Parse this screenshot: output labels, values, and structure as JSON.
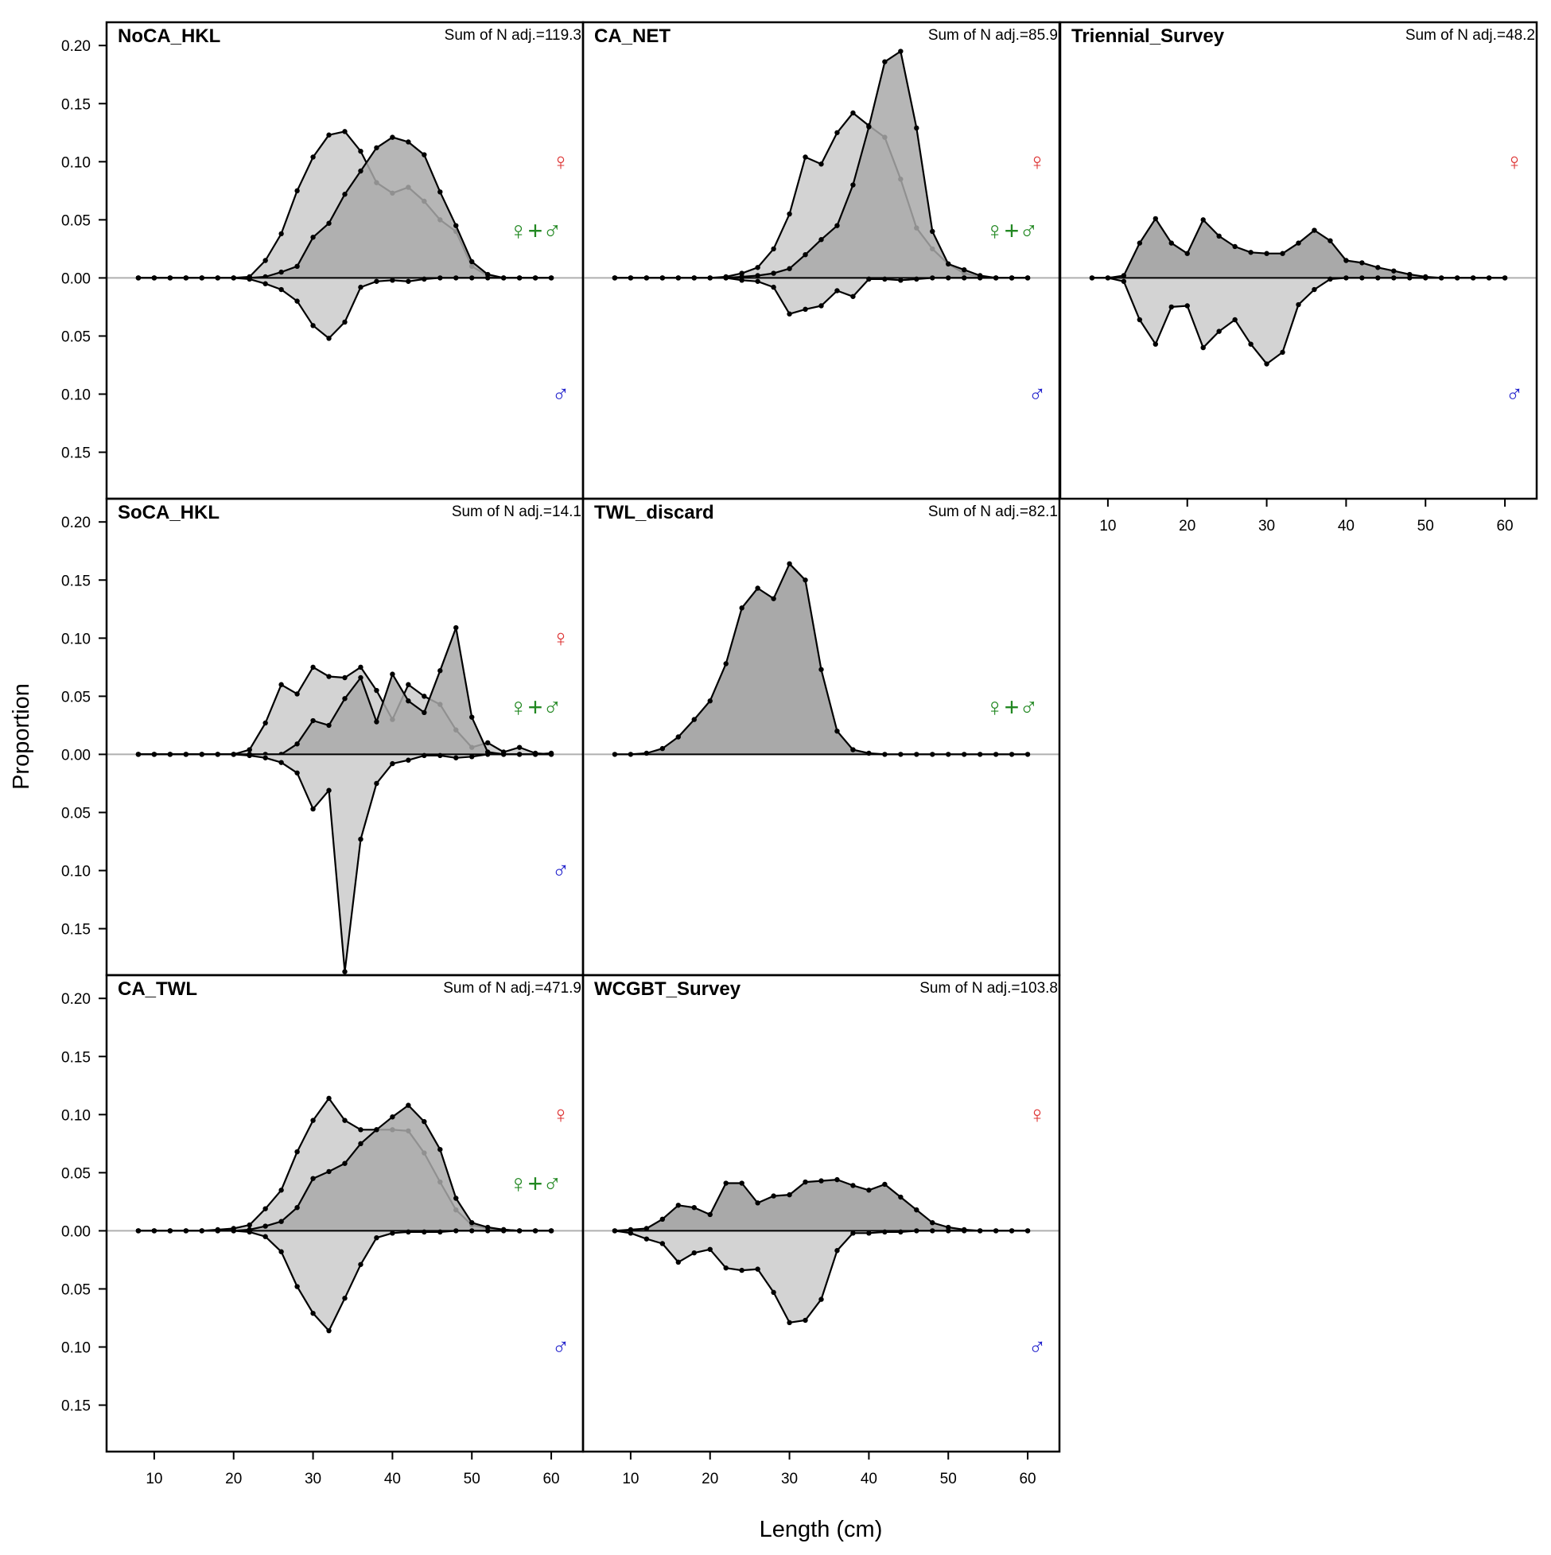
{
  "chart_data": {
    "type": "area",
    "xlabel": "Length (cm)",
    "ylabel": "Proportion",
    "xlim": [
      4,
      64
    ],
    "ylim": [
      -0.19,
      0.22
    ],
    "x_ticks": [
      10,
      20,
      30,
      40,
      50,
      60
    ],
    "y_ticks": [
      -0.15,
      -0.1,
      -0.05,
      0.0,
      0.05,
      0.1,
      0.15,
      0.2
    ],
    "y_tick_labels": [
      "0.15",
      "0.10",
      "0.05",
      "0.00",
      "0.05",
      "0.10",
      "0.15",
      "0.20"
    ],
    "x": [
      8,
      10,
      12,
      14,
      16,
      18,
      20,
      22,
      24,
      26,
      28,
      30,
      32,
      34,
      36,
      38,
      40,
      42,
      44,
      46,
      48,
      50,
      52,
      54,
      56,
      58,
      60
    ],
    "sex_symbols": {
      "female": "♀",
      "combined": "♀+♂",
      "male": "♂"
    },
    "colors": {
      "female_symbol": "#dd3333",
      "combined_symbol": "#228822",
      "male_symbol": "#2222cc",
      "fill_dark": "#a9a9a9",
      "fill_light": "#d3d3d3",
      "zero_line": "#b0b0b0"
    },
    "panels": [
      {
        "name": "NoCA_HKL",
        "sum_label": "Sum of N adj.=119.3",
        "symbols": [
          "female",
          "combined",
          "male"
        ],
        "series": [
          {
            "name": "combined",
            "values": [
              0,
              0,
              0,
              0,
              0,
              0,
              0,
              0.001,
              0.015,
              0.038,
              0.075,
              0.104,
              0.123,
              0.126,
              0.109,
              0.082,
              0.073,
              0.078,
              0.066,
              0.05,
              0.04,
              0.01,
              0.002,
              0,
              0,
              0,
              0
            ]
          },
          {
            "name": "female",
            "values": [
              0,
              0,
              0,
              0,
              0,
              0,
              0,
              0,
              0.001,
              0.005,
              0.01,
              0.035,
              0.047,
              0.072,
              0.092,
              0.112,
              0.121,
              0.117,
              0.106,
              0.074,
              0.045,
              0.014,
              0.003,
              0,
              0,
              0,
              0
            ]
          },
          {
            "name": "male",
            "values": [
              0,
              0,
              0,
              0,
              0,
              0,
              0,
              -0.001,
              -0.005,
              -0.01,
              -0.02,
              -0.041,
              -0.052,
              -0.038,
              -0.008,
              -0.003,
              -0.002,
              -0.003,
              -0.001,
              0,
              0,
              0,
              0,
              0,
              0,
              0,
              0
            ]
          }
        ]
      },
      {
        "name": "CA_NET",
        "sum_label": "Sum of N adj.=85.9",
        "symbols": [
          "female",
          "combined",
          "male"
        ],
        "series": [
          {
            "name": "combined",
            "values": [
              0,
              0,
              0,
              0,
              0,
              0,
              0,
              0.001,
              0.004,
              0.009,
              0.025,
              0.055,
              0.104,
              0.098,
              0.125,
              0.142,
              0.131,
              0.121,
              0.085,
              0.043,
              0.025,
              0.012,
              0.004,
              0.001,
              0,
              0,
              0
            ]
          },
          {
            "name": "female",
            "values": [
              0,
              0,
              0,
              0,
              0,
              0,
              0,
              0,
              0.001,
              0.002,
              0.004,
              0.008,
              0.02,
              0.033,
              0.045,
              0.08,
              0.13,
              0.186,
              0.195,
              0.129,
              0.04,
              0.012,
              0.007,
              0.002,
              0,
              0,
              0
            ]
          },
          {
            "name": "male",
            "values": [
              0,
              0,
              0,
              0,
              0,
              0,
              0,
              0,
              -0.002,
              -0.003,
              -0.008,
              -0.031,
              -0.027,
              -0.024,
              -0.011,
              -0.016,
              -0.001,
              -0.001,
              -0.002,
              -0.001,
              0,
              0,
              0,
              0,
              0,
              0,
              0
            ]
          }
        ]
      },
      {
        "name": "Triennial_Survey",
        "sum_label": "Sum of N adj.=48.2",
        "symbols": [
          "female",
          "male"
        ],
        "series": [
          {
            "name": "female",
            "values": [
              0,
              0,
              0.002,
              0.03,
              0.051,
              0.03,
              0.021,
              0.05,
              0.036,
              0.027,
              0.022,
              0.021,
              0.021,
              0.03,
              0.041,
              0.032,
              0.015,
              0.013,
              0.009,
              0.006,
              0.003,
              0.001,
              0,
              0,
              0,
              0,
              0
            ]
          },
          {
            "name": "male",
            "values": [
              0,
              0,
              -0.003,
              -0.036,
              -0.057,
              -0.025,
              -0.024,
              -0.06,
              -0.046,
              -0.036,
              -0.057,
              -0.074,
              -0.064,
              -0.023,
              -0.01,
              -0.001,
              0,
              0,
              0,
              0,
              0,
              0,
              0,
              0,
              0,
              0,
              0
            ]
          }
        ]
      },
      {
        "name": "SoCA_HKL",
        "sum_label": "Sum of N adj.=14.1",
        "symbols": [
          "female",
          "combined",
          "male"
        ],
        "series": [
          {
            "name": "combined",
            "values": [
              0,
              0,
              0,
              0,
              0,
              0,
              0,
              0.004,
              0.027,
              0.06,
              0.052,
              0.075,
              0.067,
              0.066,
              0.075,
              0.055,
              0.03,
              0.06,
              0.05,
              0.043,
              0.021,
              0.006,
              0.01,
              0.002,
              0.006,
              0.001,
              0
            ]
          },
          {
            "name": "female",
            "values": [
              0,
              0,
              0,
              0,
              0,
              0,
              0,
              0,
              0,
              0,
              0.009,
              0.029,
              0.025,
              0.048,
              0.066,
              0.028,
              0.069,
              0.046,
              0.036,
              0.072,
              0.109,
              0.032,
              0.002,
              0,
              0,
              0,
              0.001
            ]
          },
          {
            "name": "male",
            "values": [
              0,
              0,
              0,
              0,
              0,
              0,
              0,
              -0.001,
              -0.003,
              -0.007,
              -0.016,
              -0.047,
              -0.031,
              -0.187,
              -0.073,
              -0.025,
              -0.008,
              -0.005,
              -0.001,
              -0.001,
              -0.003,
              -0.002,
              0,
              0,
              0,
              0,
              0
            ]
          }
        ]
      },
      {
        "name": "TWL_discard",
        "sum_label": "Sum of N adj.=82.1",
        "symbols": [
          "combined"
        ],
        "series": [
          {
            "name": "combined",
            "values": [
              0,
              0,
              0.001,
              0.005,
              0.015,
              0.03,
              0.046,
              0.078,
              0.126,
              0.143,
              0.134,
              0.164,
              0.15,
              0.073,
              0.02,
              0.004,
              0.001,
              0,
              0,
              0,
              0,
              0,
              0,
              0,
              0,
              0,
              0
            ]
          }
        ]
      },
      {
        "name": "CA_TWL",
        "sum_label": "Sum of N adj.=471.9",
        "symbols": [
          "female",
          "combined",
          "male"
        ],
        "series": [
          {
            "name": "combined",
            "values": [
              0,
              0,
              0,
              0,
              0,
              0.001,
              0.002,
              0.005,
              0.019,
              0.035,
              0.068,
              0.095,
              0.114,
              0.095,
              0.087,
              0.087,
              0.087,
              0.086,
              0.067,
              0.042,
              0.018,
              0.005,
              0.002,
              0.001,
              0,
              0,
              0
            ]
          },
          {
            "name": "female",
            "values": [
              0,
              0,
              0,
              0,
              0,
              0,
              0,
              0.001,
              0.004,
              0.008,
              0.02,
              0.045,
              0.051,
              0.058,
              0.075,
              0.087,
              0.098,
              0.108,
              0.094,
              0.07,
              0.028,
              0.007,
              0.003,
              0.001,
              0,
              0,
              0
            ]
          },
          {
            "name": "male",
            "values": [
              0,
              0,
              0,
              0,
              0,
              0,
              0,
              -0.001,
              -0.005,
              -0.018,
              -0.048,
              -0.071,
              -0.086,
              -0.058,
              -0.029,
              -0.006,
              -0.002,
              -0.001,
              -0.001,
              -0.001,
              0,
              0,
              0,
              0,
              0,
              0,
              0
            ]
          }
        ]
      },
      {
        "name": "WCGBT_Survey",
        "sum_label": "Sum of N adj.=103.8",
        "symbols": [
          "female",
          "male"
        ],
        "series": [
          {
            "name": "female",
            "values": [
              0,
              0.001,
              0.002,
              0.01,
              0.022,
              0.02,
              0.014,
              0.041,
              0.041,
              0.024,
              0.03,
              0.031,
              0.042,
              0.043,
              0.044,
              0.039,
              0.035,
              0.04,
              0.029,
              0.018,
              0.007,
              0.003,
              0.001,
              0,
              0,
              0,
              0
            ]
          },
          {
            "name": "male",
            "values": [
              0,
              -0.002,
              -0.007,
              -0.011,
              -0.027,
              -0.019,
              -0.016,
              -0.032,
              -0.034,
              -0.033,
              -0.053,
              -0.079,
              -0.077,
              -0.059,
              -0.017,
              -0.002,
              -0.002,
              -0.001,
              -0.001,
              0,
              0,
              0,
              0,
              0,
              0,
              0,
              0
            ]
          }
        ]
      }
    ]
  }
}
